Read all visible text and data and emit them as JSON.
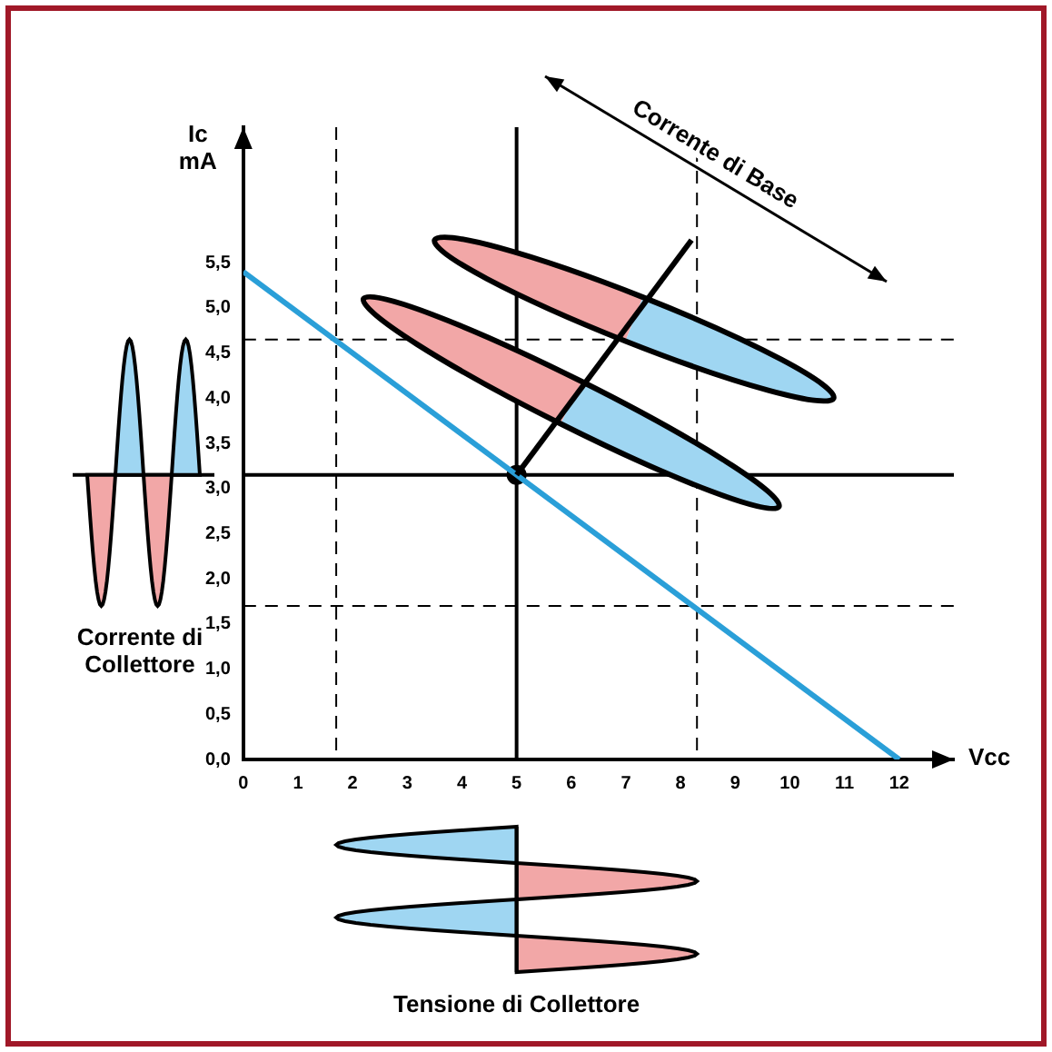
{
  "chart_data": {
    "type": "line",
    "xlabel": "Vcc",
    "ylabel": "Ic mA",
    "xlim": [
      0,
      13
    ],
    "ylim": [
      0,
      7
    ],
    "xticks": [
      0,
      1,
      2,
      3,
      4,
      5,
      6,
      7,
      8,
      9,
      10,
      11,
      12
    ],
    "yticks": [
      {
        "value": 0,
        "label": "0,0"
      },
      {
        "value": 0.5,
        "label": "0,5"
      },
      {
        "value": 1,
        "label": "1,0"
      },
      {
        "value": 1.5,
        "label": "1,5"
      },
      {
        "value": 2,
        "label": "2,0"
      },
      {
        "value": 2.5,
        "label": "2,5"
      },
      {
        "value": 3,
        "label": "3,0"
      },
      {
        "value": 3.5,
        "label": "3,5"
      },
      {
        "value": 4,
        "label": "4,0"
      },
      {
        "value": 4.5,
        "label": "4,5"
      },
      {
        "value": 5,
        "label": "5,0"
      },
      {
        "value": 5.5,
        "label": "5,5"
      }
    ],
    "series": [
      {
        "color": "#2a9fd8",
        "x": [
          0,
          12
        ],
        "values": [
          5.4,
          0
        ]
      },
      {
        "type": "scatter",
        "color": "#000000",
        "marker": "circle",
        "x": [
          5
        ],
        "values": [
          3.15
        ]
      }
    ],
    "ref_lines": [
      {
        "axis": "y",
        "value": 4.65,
        "line_style": "dashed",
        "color": "#000000"
      },
      {
        "axis": "y",
        "value": 1.7,
        "line_style": "dashed",
        "color": "#000000"
      },
      {
        "axis": "x",
        "value": 1.7,
        "line_style": "dashed",
        "color": "#000000"
      },
      {
        "axis": "x",
        "value": 8.3,
        "line_style": "dashed",
        "color": "#000000"
      },
      {
        "axis": "y",
        "value": 3.15,
        "line_style": "solid",
        "color": "#000000"
      },
      {
        "axis": "x",
        "value": 5,
        "line_style": "solid",
        "color": "#000000"
      }
    ],
    "annotations": [
      "Corrente di Base",
      "Corrente di Collettore",
      "Tensione di Collettore"
    ],
    "grid": false,
    "legend": false
  }
}
